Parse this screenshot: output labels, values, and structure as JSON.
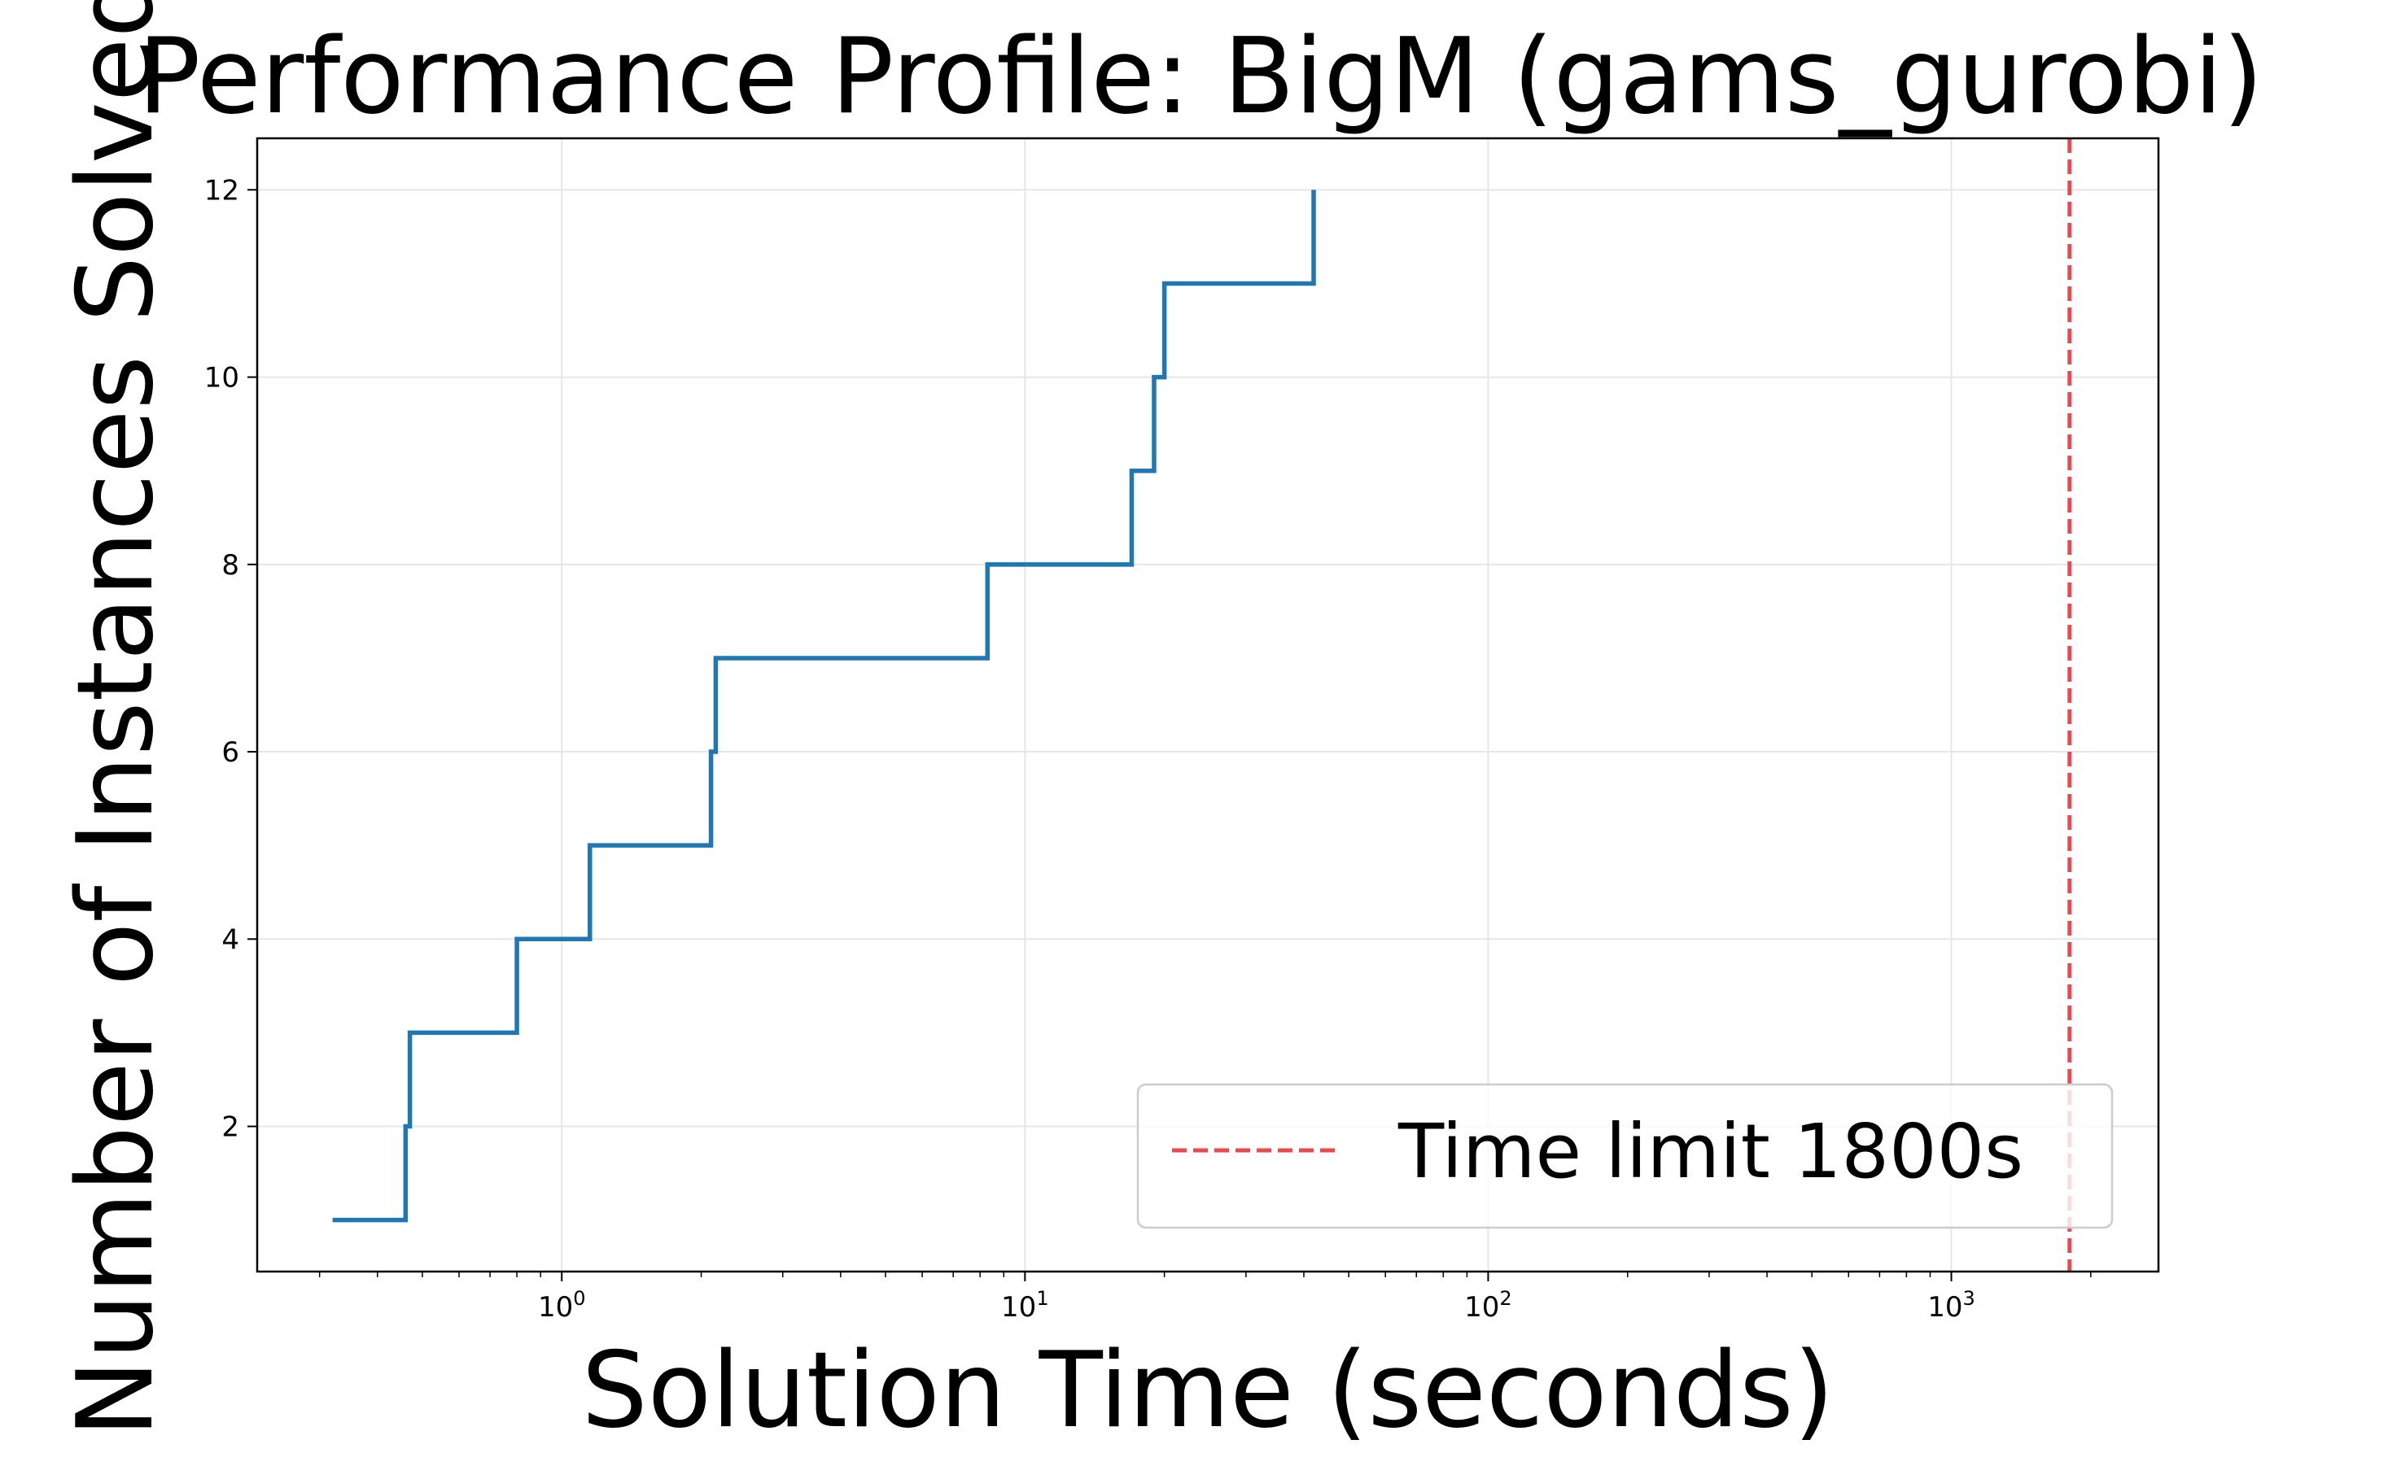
{
  "chart_data": {
    "type": "line",
    "title": "Performance Profile: BigM (gams_gurobi)",
    "xlabel": "Solution Time (seconds)",
    "ylabel": "Number of Instances Solved",
    "xscale": "log",
    "xlim": [
      0.22,
      2800
    ],
    "ylim": [
      0.45,
      12.55
    ],
    "grid": true,
    "legend_position": "lower right",
    "x_ticks": [
      {
        "value": 1,
        "base": "10",
        "exp": "0"
      },
      {
        "value": 10,
        "base": "10",
        "exp": "1"
      },
      {
        "value": 100,
        "base": "10",
        "exp": "2"
      },
      {
        "value": 1000,
        "base": "10",
        "exp": "3"
      }
    ],
    "y_ticks": [
      2,
      4,
      6,
      8,
      10,
      12
    ],
    "series": [
      {
        "name": "",
        "style": "step-post",
        "color": "#1f77b4",
        "x": [
          0.32,
          0.46,
          0.47,
          0.8,
          1.15,
          2.1,
          2.15,
          8.3,
          17.0,
          19.0,
          20.0,
          42.0
        ],
        "y": [
          1,
          2,
          3,
          4,
          5,
          6,
          7,
          8,
          9,
          10,
          11,
          12
        ]
      }
    ],
    "reference_lines": [
      {
        "orientation": "vertical",
        "x": 1800,
        "style": "dashed",
        "color": "#e84a4f",
        "label": "Time limit 1800s"
      }
    ],
    "legend": [
      {
        "label": "Time limit 1800s",
        "color": "#e84a4f",
        "style": "dashed"
      }
    ]
  }
}
